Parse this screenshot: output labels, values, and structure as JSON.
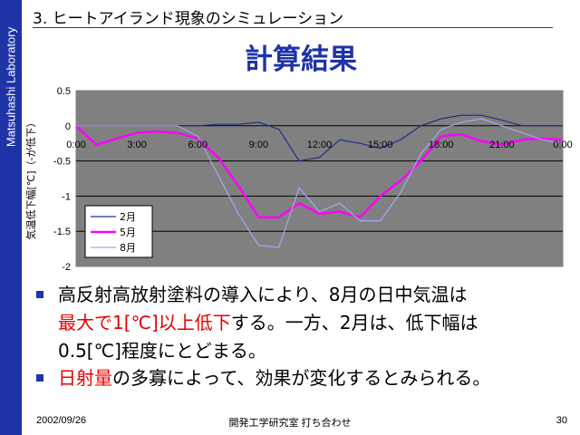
{
  "sidebar": {
    "label": "Matsuhashi Laboratory"
  },
  "slide": {
    "heading": "3. ヒートアイランド現象のシミュレーション",
    "title": "計算結果"
  },
  "chart_data": {
    "type": "line",
    "ylabel": "気温低下幅[℃]（-が低下）",
    "xlabel": "",
    "x": [
      "0:00",
      "1:00",
      "2:00",
      "3:00",
      "4:00",
      "5:00",
      "6:00",
      "7:00",
      "8:00",
      "9:00",
      "10:00",
      "11:00",
      "12:00",
      "13:00",
      "14:00",
      "15:00",
      "16:00",
      "17:00",
      "18:00",
      "19:00",
      "20:00",
      "21:00",
      "22:00",
      "23:00",
      "0:00"
    ],
    "xticks": [
      "0:00",
      "3:00",
      "6:00",
      "9:00",
      "12:00",
      "15:00",
      "18:00",
      "21:00",
      "0:00"
    ],
    "ylim": [
      -2,
      0.5
    ],
    "yticks": [
      "0.5",
      "0",
      "-0.5",
      "-1",
      "-1.5",
      "-2"
    ],
    "grid": true,
    "legend_position": "bottom-left",
    "series": [
      {
        "name": "2月",
        "color": "#1f2f86",
        "values": [
          0.0,
          0.0,
          0.0,
          0.0,
          0.0,
          0.0,
          0.0,
          0.02,
          0.02,
          0.05,
          -0.05,
          -0.5,
          -0.45,
          -0.2,
          -0.25,
          -0.32,
          -0.2,
          0.0,
          0.1,
          0.15,
          0.15,
          0.08,
          0.0,
          0.0,
          0.0
        ]
      },
      {
        "name": "5月",
        "color": "#ff00ff",
        "values": [
          0.0,
          -0.27,
          -0.18,
          -0.1,
          -0.08,
          -0.1,
          -0.18,
          -0.45,
          -0.85,
          -1.3,
          -1.3,
          -1.1,
          -1.25,
          -1.22,
          -1.3,
          -1.0,
          -0.78,
          -0.5,
          -0.15,
          -0.12,
          -0.22,
          -0.27,
          -0.2,
          -0.18,
          -0.2
        ]
      },
      {
        "name": "8月",
        "color": "#a4a8ee",
        "values": [
          0.0,
          0.0,
          0.0,
          0.0,
          0.0,
          0.0,
          -0.15,
          -0.7,
          -1.25,
          -1.7,
          -1.73,
          -0.88,
          -1.22,
          -1.1,
          -1.35,
          -1.35,
          -0.95,
          -0.4,
          -0.05,
          0.05,
          0.1,
          0.0,
          -0.1,
          -0.2,
          -0.25
        ]
      }
    ]
  },
  "bullets": [
    {
      "lines": [
        [
          {
            "text": "高反射高放射塗料の導入により、8月の日中気温は",
            "red": false
          }
        ],
        [
          {
            "text": "最大で1[℃]以上低下",
            "red": true
          },
          {
            "text": "する。一方、2月は、低下幅は",
            "red": false
          }
        ],
        [
          {
            "text": "0.5[℃]程度にとどまる。",
            "red": false
          }
        ]
      ]
    },
    {
      "lines": [
        [
          {
            "text": "日射量",
            "red": true
          },
          {
            "text": "の多寡によって、効果が変化するとみられる。",
            "red": false
          }
        ]
      ]
    }
  ],
  "footer": {
    "date": "2002/09/26",
    "event": "開発工学研究室 打ち合わせ",
    "page": "30"
  }
}
